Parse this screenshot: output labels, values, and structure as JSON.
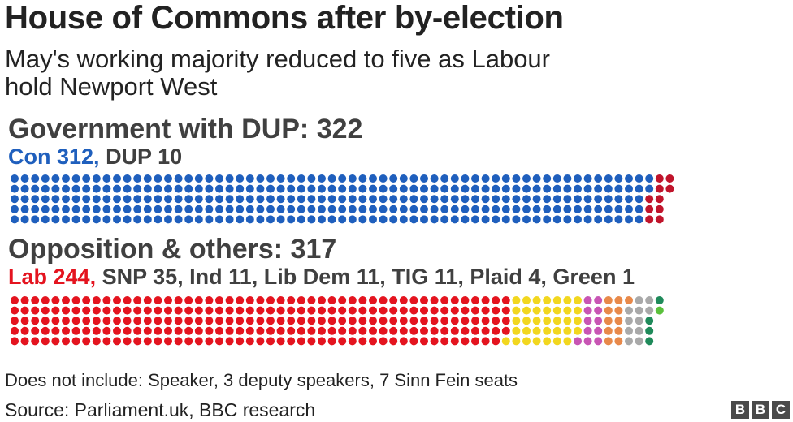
{
  "title": "House of Commons after by-election",
  "subtitle": "May's working majority reduced to five as Labour hold Newport West",
  "note": "Does not include: Speaker, 3 deputy speakers, 7 Sinn Fein seats",
  "source": "Source: Parliament.uk, BBC research",
  "logo": [
    "B",
    "B",
    "C"
  ],
  "chart_data": {
    "type": "waffle",
    "title": "House of Commons after by-election",
    "groups": [
      {
        "heading": "Government with DUP: 322",
        "total": 322,
        "parties": [
          {
            "label": "Con 312",
            "name": "Con",
            "seats": 312,
            "color": "#1f5fbd"
          },
          {
            "label": "DUP 10",
            "name": "DUP",
            "seats": 10,
            "color": "#c0142b"
          }
        ]
      },
      {
        "heading": "Opposition & others: 317",
        "total": 317,
        "parties": [
          {
            "label": "Lab 244",
            "name": "Lab",
            "seats": 244,
            "color": "#e4141f"
          },
          {
            "label": "SNP 35",
            "name": "SNP",
            "seats": 35,
            "color": "#f2d71f"
          },
          {
            "label": "Ind 11",
            "name": "Ind",
            "seats": 11,
            "color": "#c855b4"
          },
          {
            "label": "Lib Dem 11",
            "name": "Lib Dem",
            "seats": 11,
            "color": "#e8894a"
          },
          {
            "label": "TIG 11",
            "name": "TIG",
            "seats": 11,
            "color": "#a9a9a9"
          },
          {
            "label": "Plaid 4",
            "name": "Plaid",
            "seats": 4,
            "color": "#1f8a5a"
          },
          {
            "label": "Green 1",
            "name": "Green",
            "seats": 1,
            "color": "#5ac03c"
          }
        ]
      }
    ]
  }
}
